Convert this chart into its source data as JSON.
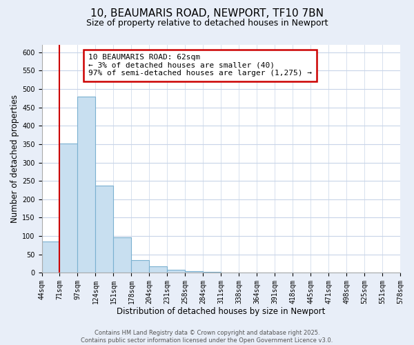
{
  "title": "10, BEAUMARIS ROAD, NEWPORT, TF10 7BN",
  "subtitle": "Size of property relative to detached houses in Newport",
  "bar_values": [
    85,
    352,
    480,
    238,
    97,
    35,
    18,
    8,
    5,
    2,
    0,
    0,
    0,
    0,
    0,
    0,
    0,
    0,
    0,
    0
  ],
  "bar_labels": [
    "44sqm",
    "71sqm",
    "97sqm",
    "124sqm",
    "151sqm",
    "178sqm",
    "204sqm",
    "231sqm",
    "258sqm",
    "284sqm",
    "311sqm",
    "338sqm",
    "364sqm",
    "391sqm",
    "418sqm",
    "445sqm",
    "471sqm",
    "498sqm",
    "525sqm",
    "551sqm",
    "578sqm"
  ],
  "bar_color": "#c8dff0",
  "bar_edge_color": "#7ab0d0",
  "xlabel": "Distribution of detached houses by size in Newport",
  "ylabel": "Number of detached properties",
  "ylim": [
    0,
    620
  ],
  "yticks": [
    0,
    50,
    100,
    150,
    200,
    250,
    300,
    350,
    400,
    450,
    500,
    550,
    600
  ],
  "annotation_line1": "10 BEAUMARIS ROAD: 62sqm",
  "annotation_line2": "← 3% of detached houses are smaller (40)",
  "annotation_line3": "97% of semi-detached houses are larger (1,275) →",
  "vline_x": 1.0,
  "vline_color": "#cc0000",
  "footer_text": "Contains HM Land Registry data © Crown copyright and database right 2025.\nContains public sector information licensed under the Open Government Licence v3.0.",
  "bg_color": "#e8eef8",
  "plot_bg_color": "#ffffff",
  "grid_color": "#c8d4e8",
  "title_fontsize": 11,
  "subtitle_fontsize": 9,
  "xlabel_fontsize": 8.5,
  "ylabel_fontsize": 8.5,
  "tick_fontsize": 7,
  "footer_fontsize": 6,
  "ann_fontsize": 8
}
